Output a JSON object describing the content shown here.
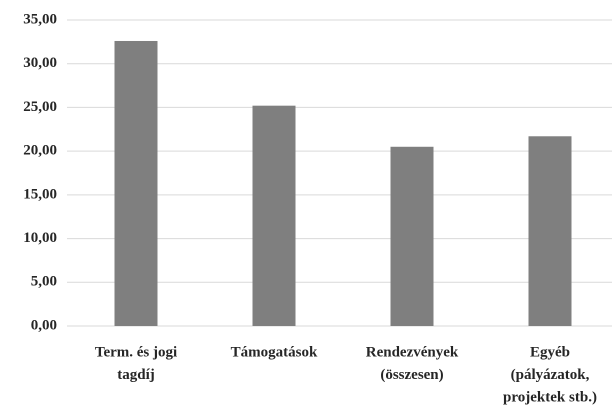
{
  "chart_data": {
    "type": "bar",
    "categories": [
      [
        "Term. és jogi",
        "tagdíj"
      ],
      [
        "Támogatások"
      ],
      [
        "Rendezvények",
        "(összesen)"
      ],
      [
        "Egyéb",
        "(pályázatok,",
        "projektek stb.)"
      ]
    ],
    "values": [
      32.6,
      25.2,
      20.5,
      21.7
    ],
    "color": "#7f7f7f",
    "ylim": [
      0,
      35
    ],
    "yticks": [
      {
        "value": 0,
        "label": "0,00"
      },
      {
        "value": 5,
        "label": "5,00"
      },
      {
        "value": 10,
        "label": "10,00"
      },
      {
        "value": 15,
        "label": "15,00"
      },
      {
        "value": 20,
        "label": "20,00"
      },
      {
        "value": 25,
        "label": "25,00"
      },
      {
        "value": 30,
        "label": "30,00"
      },
      {
        "value": 35,
        "label": "35,00"
      }
    ],
    "grid": true
  }
}
